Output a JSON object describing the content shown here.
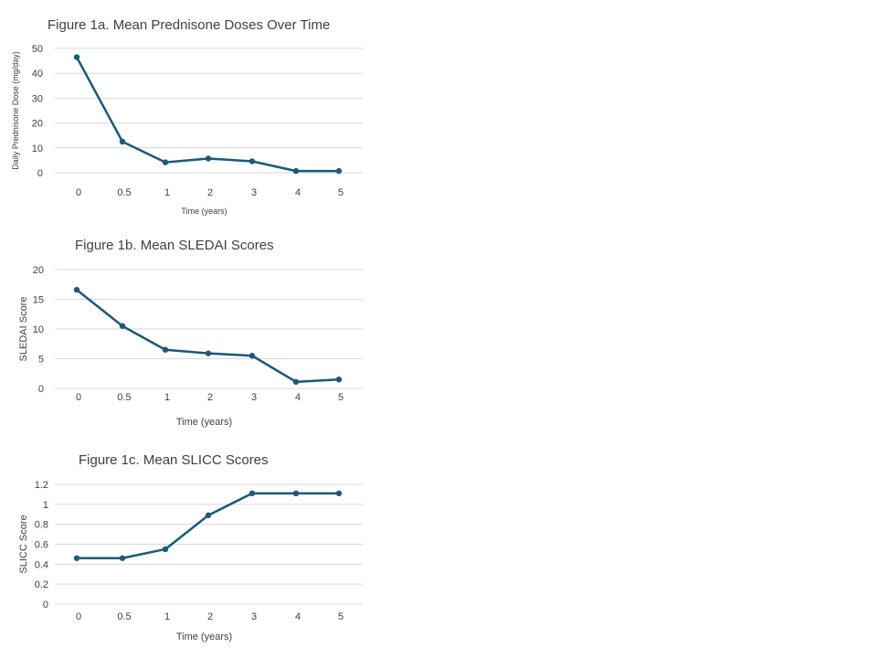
{
  "colors": {
    "series": "#1a5a78",
    "grid": "#d9d9d9",
    "text": "#404040"
  },
  "chart_data": [
    {
      "type": "line",
      "title": "Figure 1a. Mean Prednisone Doses Over Time",
      "xlabel": "Time (years)",
      "ylabel": "Daily Prednisone Dose (mg/day)",
      "categories": [
        "0",
        "0.5",
        "1",
        "2",
        "3",
        "4",
        "5"
      ],
      "values": [
        46.5,
        12.5,
        4.2,
        5.7,
        4.6,
        0.7,
        0.7
      ],
      "ylim": [
        0,
        50
      ],
      "yticks": [
        "0",
        "10",
        "20",
        "30",
        "40",
        "50"
      ],
      "grid": true
    },
    {
      "type": "line",
      "title": "Figure 1b. Mean SLEDAI Scores",
      "xlabel": "Time (years)",
      "ylabel": "SLEDAI Score",
      "categories": [
        "0",
        "0.5",
        "1",
        "2",
        "3",
        "4",
        "5"
      ],
      "values": [
        16.6,
        10.5,
        6.5,
        5.9,
        5.5,
        1.1,
        1.5
      ],
      "ylim": [
        0,
        20
      ],
      "yticks": [
        "0",
        "5",
        "10",
        "15",
        "20"
      ],
      "grid": true
    },
    {
      "type": "line",
      "title": "Figure 1c. Mean SLICC Scores",
      "xlabel": "Time (years)",
      "ylabel": "SLICC Score",
      "categories": [
        "0",
        "0.5",
        "1",
        "2",
        "3",
        "4",
        "5"
      ],
      "values": [
        0.46,
        0.46,
        0.55,
        0.89,
        1.11,
        1.11,
        1.11
      ],
      "ylim": [
        0,
        1.2
      ],
      "yticks": [
        "0",
        "0.2",
        "0.4",
        "0.6",
        "0.8",
        "1",
        "1.2"
      ],
      "grid": true
    }
  ]
}
